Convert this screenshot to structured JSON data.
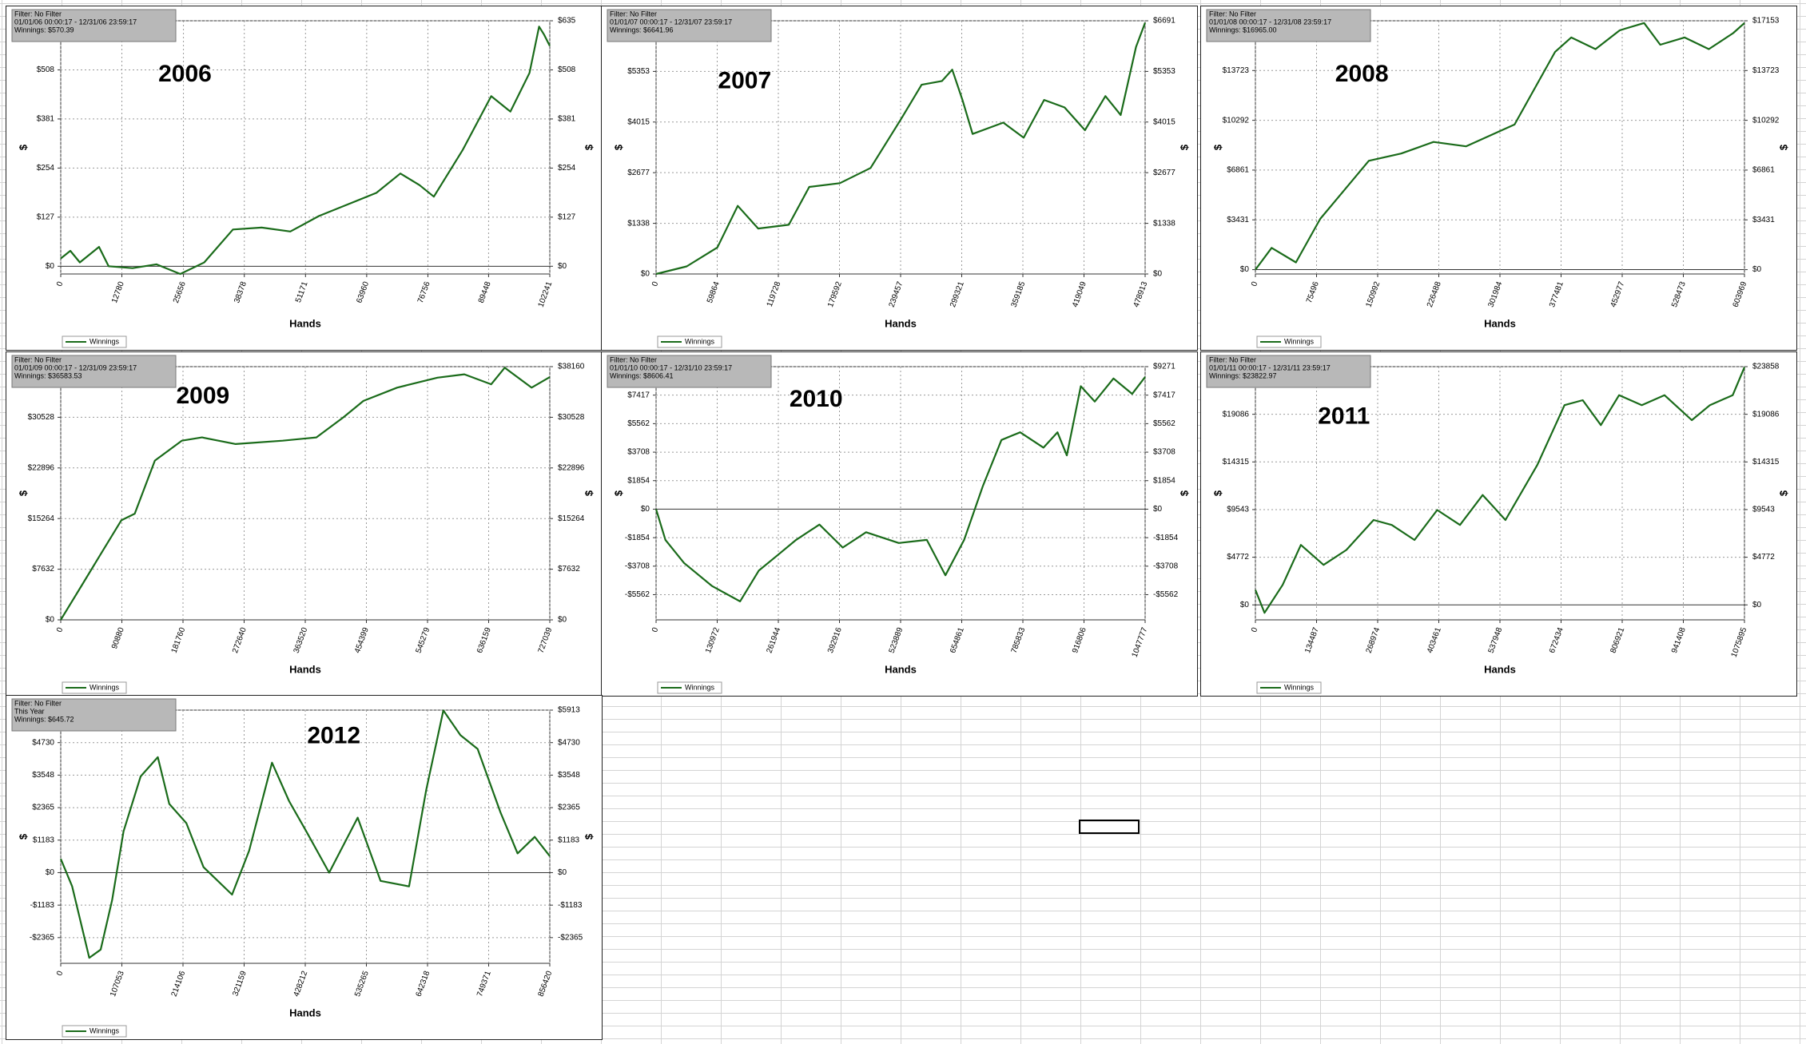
{
  "chart_data": [
    {
      "type": "line",
      "title": "2006",
      "filter_lines": [
        "Filter: No Filter",
        "01/01/06 00:00:17 - 12/31/06 23:59:17",
        "Winnings: $570.39"
      ],
      "xlabel": "Hands",
      "ylabel": "$",
      "x": [
        0,
        2000,
        4000,
        8000,
        10000,
        15000,
        20000,
        25000,
        30000,
        36000,
        42000,
        48000,
        54000,
        60000,
        66000,
        71000,
        75000,
        78000,
        84000,
        90000,
        94000,
        98000,
        100000,
        101000,
        102241
      ],
      "series": [
        {
          "name": "Winnings",
          "color": "#1a6b1a",
          "values": [
            20,
            40,
            10,
            50,
            0,
            -5,
            5,
            -20,
            10,
            95,
            100,
            90,
            130,
            160,
            190,
            240,
            210,
            180,
            300,
            440,
            400,
            500,
            620,
            600,
            570
          ]
        }
      ],
      "xlim": [
        0,
        102241
      ],
      "xticks": [
        0,
        12780,
        25656,
        38378,
        51171,
        63960,
        76756,
        89448,
        102241
      ],
      "ylim": [
        -20,
        635
      ],
      "yticks": [
        {
          "value": 0,
          "label": "$0"
        },
        {
          "value": 127,
          "label": "$127"
        },
        {
          "value": 254,
          "label": "$254"
        },
        {
          "value": 381,
          "label": "$381"
        },
        {
          "value": 508,
          "label": "$508"
        },
        {
          "value": 635,
          "label": "$635"
        }
      ]
    },
    {
      "type": "line",
      "title": "2007",
      "filter_lines": [
        "Filter: No Filter",
        "01/01/07 00:00:17 - 12/31/07 23:59:17",
        "Winnings: $6641.96"
      ],
      "xlabel": "Hands",
      "ylabel": "$",
      "x": [
        0,
        30000,
        60000,
        80000,
        100000,
        130000,
        150000,
        180000,
        210000,
        240000,
        260000,
        280000,
        290000,
        300000,
        310000,
        340000,
        360000,
        380000,
        400000,
        420000,
        440000,
        455000,
        470000,
        478913
      ],
      "series": [
        {
          "name": "Winnings",
          "color": "#1a6b1a",
          "values": [
            0,
            200,
            700,
            1800,
            1200,
            1300,
            2300,
            2400,
            2800,
            4100,
            5000,
            5100,
            5400,
            4600,
            3700,
            4000,
            3600,
            4600,
            4400,
            3800,
            4700,
            4200,
            6000,
            6640
          ]
        }
      ],
      "xlim": [
        0,
        478913
      ],
      "xticks": [
        0,
        59864,
        119728,
        179592,
        239457,
        299321,
        359185,
        419049,
        478913
      ],
      "ylim": [
        0,
        6691
      ],
      "yticks": [
        {
          "value": 0,
          "label": "$0"
        },
        {
          "value": 1338,
          "label": "$1338"
        },
        {
          "value": 2677,
          "label": "$2677"
        },
        {
          "value": 4015,
          "label": "$4015"
        },
        {
          "value": 5353,
          "label": "$5353"
        },
        {
          "value": 6691,
          "label": "$6691"
        }
      ]
    },
    {
      "type": "line",
      "title": "2008",
      "filter_lines": [
        "Filter: No Filter",
        "01/01/08 00:00:17 - 12/31/08 23:59:17",
        "Winnings: $16965.00"
      ],
      "xlabel": "Hands",
      "ylabel": "$",
      "x": [
        0,
        20000,
        50000,
        80000,
        110000,
        140000,
        180000,
        220000,
        260000,
        300000,
        320000,
        340000,
        370000,
        390000,
        420000,
        450000,
        480000,
        500000,
        530000,
        560000,
        590000,
        603969
      ],
      "series": [
        {
          "name": "Winnings",
          "color": "#1a6b1a",
          "values": [
            0,
            1500,
            500,
            3500,
            5500,
            7500,
            8000,
            8800,
            8500,
            9500,
            10000,
            12000,
            15000,
            16000,
            15200,
            16500,
            17000,
            15500,
            16000,
            15200,
            16300,
            17000
          ]
        }
      ],
      "xlim": [
        0,
        603969
      ],
      "xticks": [
        0,
        75496,
        150992,
        226488,
        301984,
        377481,
        452977,
        528473,
        603969
      ],
      "ylim": [
        -300,
        17153
      ],
      "yticks": [
        {
          "value": 0,
          "label": "$0"
        },
        {
          "value": 3431,
          "label": "$3431"
        },
        {
          "value": 6861,
          "label": "$6861"
        },
        {
          "value": 10292,
          "label": "$10292"
        },
        {
          "value": 13723,
          "label": "$13723"
        },
        {
          "value": 17153,
          "label": "$17153"
        }
      ]
    },
    {
      "type": "line",
      "title": "2009",
      "filter_lines": [
        "Filter: No Filter",
        "01/01/09 00:00:17 - 12/31/09 23:59:17",
        "Winnings: $36583.53"
      ],
      "xlabel": "Hands",
      "ylabel": "$",
      "x": [
        0,
        30000,
        60000,
        90000,
        110000,
        140000,
        180000,
        210000,
        260000,
        330000,
        380000,
        420000,
        450000,
        500000,
        560000,
        600000,
        640000,
        660000,
        700000,
        727039
      ],
      "series": [
        {
          "name": "Winnings",
          "color": "#1a6b1a",
          "values": [
            0,
            5000,
            10000,
            15000,
            16000,
            24000,
            27000,
            27500,
            26500,
            27000,
            27500,
            30500,
            33000,
            35000,
            36500,
            37000,
            35500,
            38000,
            35000,
            36580
          ]
        }
      ],
      "xlim": [
        0,
        727039
      ],
      "xticks": [
        0,
        90880,
        181760,
        272640,
        363520,
        454399,
        545279,
        636159,
        727039
      ],
      "ylim": [
        0,
        38160
      ],
      "yticks": [
        {
          "value": 0,
          "label": "$0"
        },
        {
          "value": 7632,
          "label": "$7632"
        },
        {
          "value": 15264,
          "label": "$15264"
        },
        {
          "value": 22896,
          "label": "$22896"
        },
        {
          "value": 30528,
          "label": "$30528"
        },
        {
          "value": 38160,
          "label": "$38160"
        }
      ]
    },
    {
      "type": "line",
      "title": "2010",
      "filter_lines": [
        "Filter: No Filter",
        "01/01/10 00:00:17 - 12/31/10 23:59:17",
        "Winnings: $8606.41"
      ],
      "xlabel": "Hands",
      "ylabel": "$",
      "x": [
        0,
        20000,
        60000,
        120000,
        180000,
        220000,
        260000,
        300000,
        350000,
        400000,
        450000,
        520000,
        580000,
        620000,
        660000,
        700000,
        740000,
        780000,
        830000,
        860000,
        880000,
        910000,
        940000,
        980000,
        1020000,
        1047777
      ],
      "series": [
        {
          "name": "Winnings",
          "color": "#1a6b1a",
          "values": [
            0,
            -2000,
            -3500,
            -5000,
            -6000,
            -4000,
            -3000,
            -2000,
            -1000,
            -2500,
            -1500,
            -2200,
            -2000,
            -4300,
            -2000,
            1500,
            4500,
            5000,
            4000,
            5000,
            3500,
            8000,
            7000,
            8500,
            7500,
            8600
          ]
        }
      ],
      "xlim": [
        0,
        1047777
      ],
      "xticks": [
        0,
        130972,
        261944,
        392916,
        523889,
        654861,
        785833,
        916806,
        1047777
      ],
      "ylim": [
        -7200,
        9271
      ],
      "yticks": [
        {
          "value": -5562,
          "label": "-$5562"
        },
        {
          "value": -3708,
          "label": "-$3708"
        },
        {
          "value": -1854,
          "label": "-$1854"
        },
        {
          "value": 0,
          "label": "$0"
        },
        {
          "value": 1854,
          "label": "$1854"
        },
        {
          "value": 3708,
          "label": "$3708"
        },
        {
          "value": 5562,
          "label": "$5562"
        },
        {
          "value": 7417,
          "label": "$7417"
        },
        {
          "value": 9271,
          "label": "$9271"
        }
      ]
    },
    {
      "type": "line",
      "title": "2011",
      "filter_lines": [
        "Filter: No Filter",
        "01/01/11 00:00:17 - 12/31/11 23:59:17",
        "Winnings: $23822.97"
      ],
      "xlabel": "Hands",
      "ylabel": "$",
      "x": [
        0,
        20000,
        60000,
        100000,
        150000,
        200000,
        260000,
        300000,
        350000,
        400000,
        450000,
        500000,
        550000,
        620000,
        680000,
        720000,
        760000,
        800000,
        850000,
        900000,
        960000,
        1000000,
        1050000,
        1075895
      ],
      "series": [
        {
          "name": "Winnings",
          "color": "#1a6b1a",
          "values": [
            1500,
            -800,
            2000,
            6000,
            4000,
            5500,
            8500,
            8000,
            6500,
            9500,
            8000,
            11000,
            8500,
            14000,
            20000,
            20500,
            18000,
            21000,
            20000,
            21000,
            18500,
            20000,
            21000,
            23800
          ]
        }
      ],
      "xlim": [
        0,
        1075895
      ],
      "xticks": [
        0,
        134487,
        268974,
        403461,
        537948,
        672434,
        806921,
        941408,
        1075895
      ],
      "ylim": [
        -1500,
        23858
      ],
      "yticks": [
        {
          "value": 0,
          "label": "$0"
        },
        {
          "value": 4772,
          "label": "$4772"
        },
        {
          "value": 9543,
          "label": "$9543"
        },
        {
          "value": 14315,
          "label": "$14315"
        },
        {
          "value": 19086,
          "label": "$19086"
        },
        {
          "value": 23858,
          "label": "$23858"
        }
      ]
    },
    {
      "type": "line",
      "title": "2012",
      "filter_lines": [
        "Filter: No Filter",
        "This Year",
        "Winnings: $645.72"
      ],
      "xlabel": "Hands",
      "ylabel": "$",
      "x": [
        0,
        20000,
        50000,
        70000,
        90000,
        110000,
        140000,
        170000,
        190000,
        220000,
        250000,
        300000,
        330000,
        370000,
        400000,
        430000,
        470000,
        520000,
        560000,
        610000,
        640000,
        670000,
        700000,
        730000,
        770000,
        800000,
        830000,
        856420
      ],
      "series": [
        {
          "name": "Winnings",
          "color": "#1a6b1a",
          "values": [
            500,
            -500,
            -3100,
            -2800,
            -1000,
            1500,
            3500,
            4200,
            2500,
            1800,
            200,
            -800,
            800,
            4000,
            2600,
            1500,
            0,
            2000,
            -300,
            -500,
            3000,
            5900,
            5000,
            4500,
            2200,
            700,
            1300,
            600
          ]
        }
      ],
      "xlim": [
        0,
        856420
      ],
      "xticks": [
        0,
        107053,
        214106,
        321159,
        428212,
        535265,
        642318,
        749371,
        856420
      ],
      "ylim": [
        -3300,
        5913
      ],
      "yticks": [
        {
          "value": -2365,
          "label": "-$2365"
        },
        {
          "value": -1183,
          "label": "-$1183"
        },
        {
          "value": 0,
          "label": "$0"
        },
        {
          "value": 1183,
          "label": "$1183"
        },
        {
          "value": 2365,
          "label": "$2365"
        },
        {
          "value": 3548,
          "label": "$3548"
        },
        {
          "value": 4730,
          "label": "$4730"
        },
        {
          "value": 5913,
          "label": "$5913"
        }
      ]
    }
  ]
}
